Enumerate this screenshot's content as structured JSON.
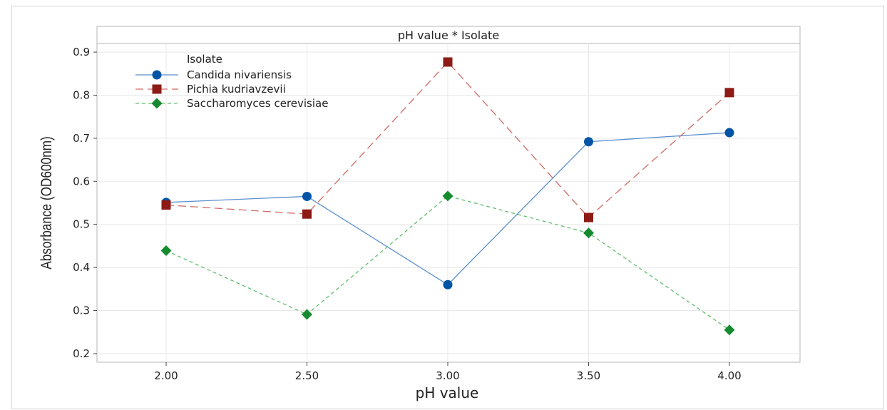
{
  "chart_data": {
    "type": "line",
    "title": "pH value * Isolate",
    "xlabel": "pH value",
    "ylabel": "Absorbance (OD600nm)",
    "x": [
      "2.00",
      "2.50",
      "3.00",
      "3.50",
      "4.00"
    ],
    "ylim": [
      0.18,
      0.92
    ],
    "yticks": [
      "0.2",
      "0.3",
      "0.4",
      "0.5",
      "0.6",
      "0.7",
      "0.8",
      "0.9"
    ],
    "grid": true,
    "legend": {
      "title": "Isolate",
      "placement": "top-left"
    },
    "series": [
      {
        "name": "Candida nivariensis",
        "values": [
          0.551,
          0.565,
          0.36,
          0.692,
          0.713
        ],
        "color": "#0054A6",
        "marker": "circle",
        "line": "solid"
      },
      {
        "name": "Pichia kudriavzevii",
        "values": [
          0.545,
          0.524,
          0.877,
          0.516,
          0.806
        ],
        "color": "#8E1A16",
        "marker": "square",
        "line": "long-dash"
      },
      {
        "name": "Saccharomyces cerevisiae",
        "values": [
          0.439,
          0.291,
          0.566,
          0.48,
          0.255
        ],
        "color": "#168A2E",
        "marker": "diamond",
        "line": "short-dash"
      }
    ]
  }
}
